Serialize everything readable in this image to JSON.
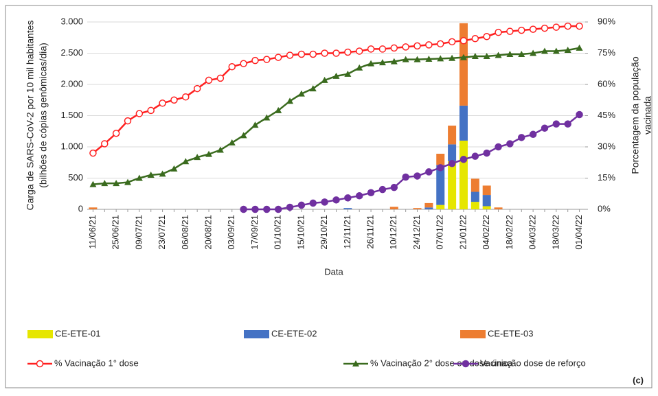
{
  "chart_data": {
    "type": "combo",
    "ylabel": [
      "Carga de SARS-CoV-2 por 10 mil habitantes",
      "(bilhões de cópias genômicas/dia)"
    ],
    "y2label": [
      "Porcentagem da população",
      "vacinada"
    ],
    "xlabel": "Data",
    "annotation": "(c)",
    "categories": [
      "11/06/21",
      null,
      "25/06/21",
      null,
      "09/07/21",
      null,
      "23/07/21",
      null,
      "06/08/21",
      null,
      "20/08/21",
      null,
      "03/09/21",
      null,
      "17/09/21",
      null,
      "01/10/21",
      null,
      "15/10/21",
      null,
      "29/10/21",
      null,
      "12/11/21",
      null,
      "26/11/21",
      null,
      "10/12/21",
      null,
      "24/12/21",
      null,
      "07/01/22",
      null,
      "21/01/22",
      null,
      "04/02/22",
      null,
      "18/02/22",
      null,
      "04/03/22",
      null,
      "18/03/22",
      null,
      "01/04/22"
    ],
    "ylim": [
      0,
      3000
    ],
    "yticks": [
      0,
      {
        "value": 500,
        "label": "500"
      },
      {
        "value": 1000,
        "label": "1.000"
      },
      {
        "value": 1500,
        "label": "1.500"
      },
      {
        "value": 2000,
        "label": "2.000"
      },
      {
        "value": 2500,
        "label": "2.500"
      },
      {
        "value": 3000,
        "label": "3.000"
      }
    ],
    "y2lim": [
      0,
      90
    ],
    "y2ticks": [
      {
        "value": 0,
        "label": "0%"
      },
      {
        "value": 15,
        "label": "15%"
      },
      {
        "value": 30,
        "label": "30%"
      },
      {
        "value": 45,
        "label": "45%"
      },
      {
        "value": 60,
        "label": "60%"
      },
      {
        "value": 75,
        "label": "75%"
      },
      {
        "value": 90,
        "label": "90%"
      }
    ],
    "series": [
      {
        "name": "CE-ETE-01",
        "type": "bar",
        "color": "#e6e600",
        "values": [
          0,
          0,
          0,
          0,
          0,
          0,
          0,
          0,
          0,
          0,
          0,
          0,
          0,
          0,
          0,
          0,
          0,
          0,
          0,
          0,
          0,
          0,
          0,
          0,
          0,
          0,
          0,
          0,
          0,
          0,
          70,
          770,
          1100,
          120,
          50,
          0,
          0,
          0,
          0,
          0,
          0,
          0,
          0
        ]
      },
      {
        "name": "CE-ETE-02",
        "type": "bar",
        "color": "#4472c4",
        "values": [
          0,
          0,
          0,
          0,
          0,
          0,
          0,
          0,
          0,
          0,
          0,
          0,
          0,
          0,
          0,
          0,
          0,
          0,
          0,
          0,
          0,
          0,
          20,
          0,
          0,
          0,
          0,
          0,
          0,
          30,
          640,
          270,
          560,
          160,
          180,
          0,
          0,
          0,
          0,
          0,
          0,
          0,
          0
        ]
      },
      {
        "name": "CE-ETE-03",
        "type": "bar",
        "color": "#ed7d31",
        "values": [
          30,
          0,
          0,
          0,
          0,
          0,
          0,
          0,
          0,
          0,
          0,
          0,
          0,
          0,
          0,
          0,
          0,
          0,
          0,
          0,
          0,
          0,
          0,
          0,
          0,
          0,
          40,
          0,
          20,
          70,
          180,
          300,
          1320,
          210,
          150,
          30,
          0,
          0,
          0,
          0,
          0,
          0,
          0
        ]
      },
      {
        "name": "% Vacinação 1° dose",
        "type": "line",
        "axis": "y2",
        "color": "#ff2020",
        "marker": "circle-open",
        "values": [
          27,
          31.5,
          36.5,
          42.5,
          46,
          47.5,
          51,
          52.5,
          54,
          58,
          62,
          63,
          68.5,
          70,
          71.5,
          72,
          73,
          74,
          74.5,
          74.5,
          75,
          75,
          75.5,
          76,
          77,
          77,
          77.5,
          78,
          78.5,
          79,
          79.5,
          80.5,
          81,
          82,
          83,
          85,
          85.5,
          86,
          86.5,
          87,
          87.5,
          88,
          88
        ]
      },
      {
        "name": "% Vacinação 2° dose ou dose única",
        "type": "line",
        "axis": "y2",
        "color": "#3a6b1e",
        "marker": "triangle",
        "values": [
          12,
          12.5,
          12.5,
          13,
          15,
          16.5,
          17,
          19.5,
          23,
          25,
          26.5,
          28.5,
          32,
          35.5,
          40.5,
          44,
          47.5,
          52,
          55.5,
          58,
          62,
          64,
          65,
          68,
          70,
          70.5,
          71,
          72,
          72,
          72.2,
          72.4,
          72.6,
          73,
          73.5,
          73.5,
          74,
          74.5,
          74.5,
          75,
          76,
          76,
          76.5,
          77.5
        ]
      },
      {
        "name": "Vacinação dose de reforço",
        "type": "line",
        "axis": "y2",
        "color": "#7030a0",
        "marker": "circle",
        "values": [
          null,
          null,
          null,
          null,
          null,
          null,
          null,
          null,
          null,
          null,
          null,
          null,
          null,
          0,
          0,
          0,
          0,
          1,
          2,
          3,
          3.5,
          4.5,
          5.5,
          6.5,
          8,
          9.5,
          10.5,
          15.5,
          16,
          18,
          20,
          22,
          24,
          25.5,
          27,
          30,
          31.5,
          34.5,
          36,
          39,
          41,
          41,
          45.5
        ]
      }
    ]
  }
}
